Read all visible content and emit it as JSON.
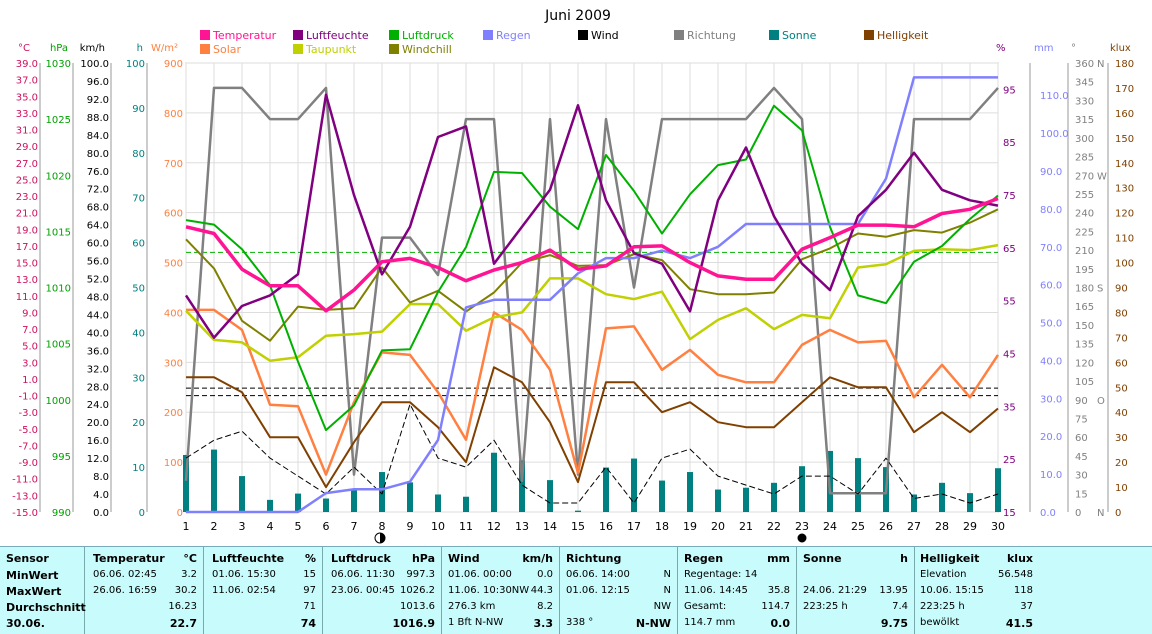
{
  "chart_data": {
    "type": "line",
    "title": "Juni 2009",
    "x": [
      1,
      2,
      3,
      4,
      5,
      6,
      7,
      8,
      9,
      10,
      11,
      12,
      13,
      14,
      15,
      16,
      17,
      18,
      19,
      20,
      21,
      22,
      23,
      24,
      25,
      26,
      27,
      28,
      29,
      30
    ],
    "x_ticks": [
      "1",
      "2",
      "3",
      "4",
      "5",
      "6",
      "7",
      "8",
      "9",
      "10",
      "11",
      "12",
      "13",
      "14",
      "15",
      "16",
      "17",
      "18",
      "19",
      "20",
      "21",
      "22",
      "23",
      "24",
      "25",
      "26",
      "27",
      "28",
      "29",
      "30"
    ],
    "legend": [
      {
        "name": "Temperatur",
        "color": "#ff1493"
      },
      {
        "name": "Luftfeuchte",
        "color": "#800080"
      },
      {
        "name": "Luftdruck",
        "color": "#00b000"
      },
      {
        "name": "Regen",
        "color": "#8080ff"
      },
      {
        "name": "Wind",
        "color": "#000000"
      },
      {
        "name": "Richtung",
        "color": "#808080"
      },
      {
        "name": "Sonne",
        "color": "#008080"
      },
      {
        "name": "Helligkeit",
        "color": "#804000"
      },
      {
        "name": "Solar",
        "color": "#ff8040"
      },
      {
        "name": "Taupunkt",
        "color": "#c0d000"
      },
      {
        "name": "Windchill",
        "color": "#808000"
      }
    ],
    "axes": {
      "temp": {
        "label": "°C",
        "color": "#d01060",
        "ticks": [
          "39.0",
          "37.0",
          "35.0",
          "33.0",
          "31.0",
          "29.0",
          "27.0",
          "25.0",
          "23.0",
          "21.0",
          "19.0",
          "17.0",
          "15.0",
          "13.0",
          "11.0",
          "9.0",
          "7.0",
          "5.0",
          "3.0",
          "1.0",
          "-1.0",
          "-3.0",
          "-5.0",
          "-7.0",
          "-9.0",
          "-11.0",
          "-13.0",
          "-15.0"
        ]
      },
      "press": {
        "label": "hPa",
        "color": "#00a000",
        "ticks": [
          "1030",
          "1025",
          "1020",
          "1015",
          "1010",
          "1005",
          "1000",
          "995",
          "990"
        ]
      },
      "wind": {
        "label": "km/h",
        "color": "#000000",
        "ticks": [
          "100.0",
          "96.0",
          "92.0",
          "88.0",
          "84.0",
          "80.0",
          "76.0",
          "72.0",
          "68.0",
          "64.0",
          "60.0",
          "56.0",
          "52.0",
          "48.0",
          "44.0",
          "40.0",
          "36.0",
          "32.0",
          "28.0",
          "24.0",
          "20.0",
          "16.0",
          "12.0",
          "8.0",
          "4.0",
          "0.0"
        ]
      },
      "sun": {
        "label": "h",
        "color": "#008080",
        "ticks": [
          "100",
          "90",
          "80",
          "70",
          "60",
          "50",
          "40",
          "30",
          "20",
          "10",
          "0"
        ]
      },
      "solar": {
        "label": "W/m²",
        "color": "#ff8040",
        "ticks": [
          "900",
          "800",
          "700",
          "600",
          "500",
          "400",
          "300",
          "200",
          "100",
          "0"
        ]
      },
      "hum": {
        "label": "%",
        "color": "#800080",
        "ticks": [
          "95",
          "85",
          "75",
          "65",
          "55",
          "45",
          "35",
          "25",
          "15"
        ]
      },
      "rain": {
        "label": "mm",
        "color": "#8080ff",
        "ticks": [
          "110.0",
          "100.0",
          "90.0",
          "80.0",
          "70.0",
          "60.0",
          "50.0",
          "40.0",
          "30.0",
          "20.0",
          "10.0",
          "0.0"
        ]
      },
      "dir": {
        "label": "°",
        "color": "#808080",
        "ticks": [
          "360",
          "345",
          "330",
          "315",
          "300",
          "285",
          "270",
          "255",
          "240",
          "225",
          "210",
          "195",
          "180",
          "165",
          "150",
          "135",
          "120",
          "105",
          "90",
          "75",
          "60",
          "45",
          "30",
          "15",
          "0"
        ],
        "letters": {
          "360": "N",
          "270": "W",
          "180": "S",
          "90": "O",
          "0": "N"
        }
      },
      "lux": {
        "label": "klux",
        "color": "#804000",
        "ticks": [
          "180",
          "170",
          "160",
          "150",
          "140",
          "130",
          "120",
          "110",
          "100",
          "90",
          "80",
          "70",
          "60",
          "50",
          "40",
          "30",
          "20",
          "10",
          "0"
        ]
      }
    },
    "series": [
      {
        "name": "Temperatur",
        "axis": "temp",
        "values": [
          19.3,
          18.5,
          14.2,
          12.2,
          12.2,
          9.2,
          11.7,
          15.1,
          15.5,
          14.4,
          12.8,
          14.1,
          15.0,
          16.5,
          14.2,
          14.6,
          16.9,
          17.0,
          15.0,
          13.4,
          13.0,
          13.0,
          16.6,
          18.0,
          19.5,
          19.5,
          19.3,
          20.9,
          21.4,
          22.7
        ]
      },
      {
        "name": "Luftfeuchte",
        "axis": "hum",
        "values": [
          56,
          48,
          54,
          56,
          60,
          94,
          75,
          60,
          69,
          86,
          88,
          62,
          69,
          76,
          92,
          74,
          64,
          62,
          53,
          74,
          84,
          71,
          62,
          57,
          71,
          76,
          83,
          76,
          74,
          73
        ]
      },
      {
        "name": "Luftdruck",
        "axis": "press",
        "values": [
          1016.0,
          1015.6,
          1013.4,
          1010.2,
          1003.4,
          997.3,
          999.5,
          1004.4,
          1004.5,
          1009.6,
          1013.6,
          1020.3,
          1020.2,
          1017.2,
          1015.2,
          1021.8,
          1018.6,
          1014.8,
          1018.3,
          1020.9,
          1021.4,
          1026.2,
          1024.0,
          1015.4,
          1009.3,
          1008.6,
          1012.3,
          1013.7,
          1016.1,
          1018.2
        ]
      },
      {
        "name": "Regen",
        "axis": "rain",
        "values": [
          0,
          0,
          0,
          0,
          0,
          5,
          6,
          6,
          8,
          19,
          54,
          56,
          56,
          56,
          63,
          67,
          67,
          69,
          67,
          70,
          76,
          76,
          76,
          76,
          76,
          88,
          114.7,
          114.7,
          114.7,
          114.7
        ]
      },
      {
        "name": "Wind",
        "axis": "wind",
        "values": [
          12,
          16,
          18,
          12,
          8,
          4,
          10,
          4,
          24,
          12,
          10,
          16,
          6,
          2,
          2,
          10,
          2,
          12,
          14,
          8,
          6,
          4,
          8,
          8,
          4,
          12,
          3,
          4,
          2,
          4
        ]
      },
      {
        "name": "Richtung",
        "axis": "dir",
        "values": [
          25,
          340,
          340,
          315,
          315,
          340,
          30,
          220,
          220,
          190,
          315,
          315,
          25,
          315,
          30,
          315,
          180,
          315,
          315,
          315,
          315,
          340,
          315,
          15,
          15,
          15,
          315,
          315,
          315,
          340
        ]
      },
      {
        "name": "Sonne",
        "axis": "sun",
        "values": [
          12.7,
          13.9,
          8.0,
          2.7,
          4.1,
          3.0,
          4.9,
          8.9,
          6.6,
          3.9,
          3.4,
          13.2,
          11.5,
          7.1,
          0.3,
          9.9,
          11.9,
          7.0,
          8.9,
          5.0,
          5.4,
          6.5,
          10.2,
          13.6,
          12.0,
          10.0,
          3.9,
          6.5,
          4.2,
          9.75
        ]
      },
      {
        "name": "Helligkeit",
        "axis": "lux",
        "values": [
          54,
          54,
          48,
          30,
          30,
          10,
          28,
          44,
          44,
          34,
          20,
          58,
          52,
          36,
          12,
          52,
          52,
          40,
          44,
          36,
          34,
          34,
          44,
          54,
          50,
          50,
          32,
          40,
          32,
          41.5
        ]
      },
      {
        "name": "Solar",
        "axis": "solar",
        "values": [
          405,
          405,
          365,
          215,
          212,
          75,
          220,
          320,
          315,
          240,
          145,
          400,
          365,
          285,
          78,
          368,
          372,
          285,
          325,
          275,
          260,
          260,
          335,
          365,
          340,
          343,
          230,
          295,
          230,
          315
        ]
      },
      {
        "name": "Taupunkt",
        "axis": "temp",
        "values": [
          9.2,
          5.7,
          5.4,
          3.2,
          3.6,
          6.2,
          6.4,
          6.7,
          10.0,
          10.0,
          6.8,
          8.4,
          9.0,
          13.1,
          13.1,
          11.2,
          10.6,
          11.5,
          5.8,
          8.1,
          9.5,
          7.0,
          8.7,
          8.3,
          14.4,
          14.8,
          16.4,
          16.6,
          16.5,
          17.1
        ]
      },
      {
        "name": "Windchill",
        "axis": "temp",
        "values": [
          17.8,
          14.3,
          8.0,
          5.6,
          9.7,
          9.3,
          9.5,
          14.4,
          10.2,
          11.6,
          9.1,
          11.4,
          15.0,
          15.9,
          14.6,
          14.7,
          16.0,
          15.3,
          11.8,
          11.2,
          11.2,
          11.4,
          15.4,
          16.7,
          18.5,
          18.1,
          18.9,
          18.6,
          19.8,
          21.4
        ]
      }
    ],
    "reference_lines": [
      {
        "axis": "temp",
        "value": 16.23,
        "color": "#00b000",
        "style": "dashed"
      },
      {
        "axis": "temp",
        "value": -0.1,
        "color": "#000000",
        "style": "dashed"
      },
      {
        "axis": "temp",
        "value": -1.0,
        "color": "#000000",
        "style": "dashed"
      }
    ],
    "markers": [
      {
        "x": 8,
        "icon": "moon-first-quarter"
      },
      {
        "x": 23,
        "icon": "new-moon"
      }
    ],
    "grid": true
  },
  "stats": {
    "sensor": {
      "title": "Sensor",
      "rows": [
        "MinWert",
        "MaxWert",
        "Durchschnitt"
      ],
      "date": "30.06."
    },
    "temperatur": {
      "title": "Temperatur",
      "unit": "°C",
      "min_time": "06.06.  02:45",
      "min": "3.2",
      "max_time": "26.06.  16:59",
      "max": "30.2",
      "avg": "16.23",
      "current": "22.7"
    },
    "luftfeuchte": {
      "title": "Luftfeuchte",
      "unit": "%",
      "min_time": "01.06.  15:30",
      "min": "15",
      "max_time": "11.06.  02:54",
      "max": "97",
      "avg": "71",
      "current": "74"
    },
    "luftdruck": {
      "title": "Luftdruck",
      "unit": "hPa",
      "min_time": "06.06.  11:30",
      "min": "997.3",
      "max_time": "23.06.  00:45",
      "max": "1026.2",
      "avg": "1013.6",
      "current": "1016.9"
    },
    "wind": {
      "title": "Wind",
      "unit": "km/h",
      "min_time": "01.06.  00:00",
      "min": "0.0",
      "max_time": "11.06.  10:30NW",
      "max": "44.3",
      "avg_label": "276.3 km",
      "avg": "8.2",
      "current_label": "1 Bft N-NW",
      "current": "3.3"
    },
    "richtung": {
      "title": "Richtung",
      "min_time": "06.06.  14:00",
      "min": "N",
      "max_time": "01.06.  12:15",
      "max": "N",
      "avg": "NW",
      "current_label": "338 °",
      "current": "N-NW"
    },
    "regen": {
      "title": "Regen",
      "unit": "mm",
      "row1": "Regentage: 14",
      "row2_label": "11.06.  14:45",
      "row2": "35.8",
      "row3_label": "Gesamt:",
      "row3": "114.7",
      "current_label": "114.7 mm",
      "current": "0.0"
    },
    "sonne": {
      "title": "Sonne",
      "unit": "h",
      "row2_label": "24.06.  21:29",
      "row2": "13.95",
      "row3_label": "223:25 h",
      "row3": "7.4",
      "current": "9.75"
    },
    "helligkeit": {
      "title": "Helligkeit",
      "unit": "klux",
      "row1_label": "Elevation",
      "row1": "56.548",
      "row2_label": "10.06.  15:15",
      "row2": "118",
      "row3_label": "223:25 h",
      "row3": "37",
      "current_label": "bewölkt",
      "current": "41.5"
    }
  }
}
